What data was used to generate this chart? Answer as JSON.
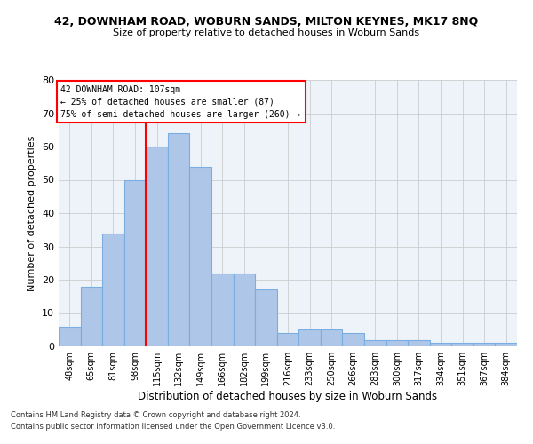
{
  "title": "42, DOWNHAM ROAD, WOBURN SANDS, MILTON KEYNES, MK17 8NQ",
  "subtitle": "Size of property relative to detached houses in Woburn Sands",
  "xlabel": "Distribution of detached houses by size in Woburn Sands",
  "ylabel": "Number of detached properties",
  "bar_labels": [
    "48sqm",
    "65sqm",
    "81sqm",
    "98sqm",
    "115sqm",
    "132sqm",
    "149sqm",
    "166sqm",
    "182sqm",
    "199sqm",
    "216sqm",
    "233sqm",
    "250sqm",
    "266sqm",
    "283sqm",
    "300sqm",
    "317sqm",
    "334sqm",
    "351sqm",
    "367sqm",
    "384sqm"
  ],
  "bar_heights": [
    6,
    18,
    34,
    50,
    60,
    64,
    54,
    22,
    22,
    17,
    4,
    5,
    5,
    4,
    2,
    2,
    2,
    1,
    1,
    1,
    1
  ],
  "bar_color": "#AEC6E8",
  "bar_edgecolor": "#7AADE0",
  "bar_linewidth": 0.8,
  "grid_color": "#cccccc",
  "background_color": "#EEF3FA",
  "ylim": [
    0,
    80
  ],
  "yticks": [
    0,
    10,
    20,
    30,
    40,
    50,
    60,
    70,
    80
  ],
  "red_line_x": 3.5,
  "annotation_line1": "42 DOWNHAM ROAD: 107sqm",
  "annotation_line2": "← 25% of detached houses are smaller (87)",
  "annotation_line3": "75% of semi-detached houses are larger (260) →",
  "annotation_box_color": "white",
  "annotation_box_edgecolor": "red",
  "footnote1": "Contains HM Land Registry data © Crown copyright and database right 2024.",
  "footnote2": "Contains public sector information licensed under the Open Government Licence v3.0."
}
